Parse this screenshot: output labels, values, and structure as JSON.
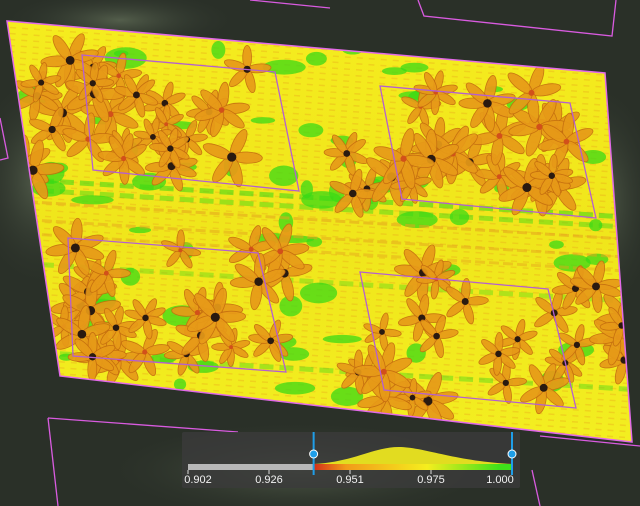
{
  "map": {
    "layer": "index-raster",
    "colors": {
      "background_dark": "#2b3129",
      "field_yellow": "#f2ee1c",
      "field_green": "#39d916",
      "plant_orange": "#e79a18",
      "plant_center": "#2a1a10",
      "plot_outline": "#d95be0"
    }
  },
  "legend": {
    "ticks": [
      "0.902",
      "0.926",
      "0.951",
      "0.975",
      "1.000"
    ],
    "range_min": 0.902,
    "range_max": 1.0,
    "handle_low_value": 0.94,
    "handle_high_value": 1.0,
    "colors": {
      "gray": "#b8b8b8",
      "red": "#d2301a",
      "orange": "#f29a1a",
      "yellow": "#f5ee1e",
      "green": "#3fe11a",
      "handle": "#1f9ee8"
    }
  }
}
